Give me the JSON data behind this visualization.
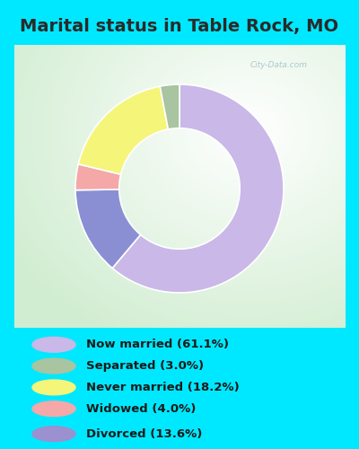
{
  "title": "Marital status in Table Rock, MO",
  "slices": [
    61.1,
    13.6,
    4.0,
    18.2,
    3.0
  ],
  "slice_order_labels": [
    "Now married",
    "Divorced",
    "Widowed",
    "Never married",
    "Separated"
  ],
  "colors": [
    "#c9b8e8",
    "#8a8fd4",
    "#f4a8a8",
    "#f5f57a",
    "#a8c4a0"
  ],
  "legend_labels": [
    "Now married (61.1%)",
    "Separated (3.0%)",
    "Never married (18.2%)",
    "Widowed (4.0%)",
    "Divorced (13.6%)"
  ],
  "legend_colors": [
    "#c9b8e8",
    "#a8c4a0",
    "#f5f57a",
    "#f4a8a8",
    "#9b90d0"
  ],
  "title_fontsize": 14,
  "title_color": "#2a2a2a",
  "bg_outer": "#00e8ff",
  "bg_chart": "#d4ecd4",
  "bg_legend": "#00e8ff",
  "watermark": "City-Data.com",
  "startangle": 90,
  "donut_width": 0.42,
  "chart_border_color": "#00e8ff"
}
